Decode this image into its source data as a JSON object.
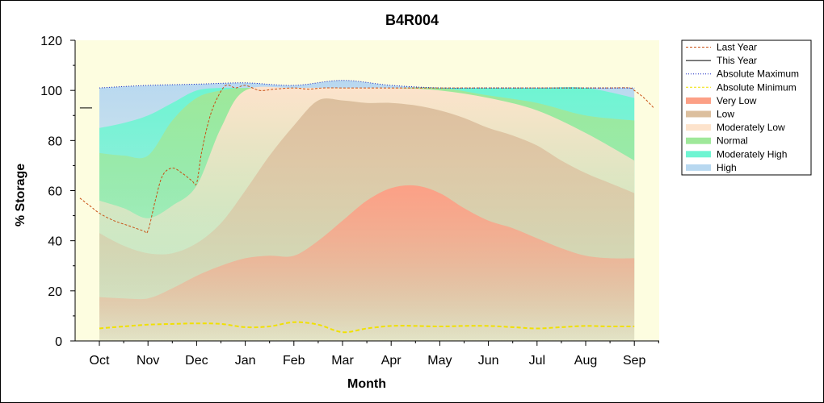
{
  "chart_data": {
    "type": "area",
    "title": "B4R004",
    "xlabel": "Month",
    "ylabel": "% Storage",
    "ylim": [
      0,
      120
    ],
    "yticks": [
      0,
      20,
      40,
      60,
      80,
      100,
      120
    ],
    "categories": [
      "Oct",
      "Nov",
      "Dec",
      "Jan",
      "Feb",
      "Mar",
      "Apr",
      "May",
      "Jun",
      "Jul",
      "Aug",
      "Sep"
    ],
    "legend_position": "right",
    "bands": [
      {
        "name": "High",
        "color": "#b8d8f0",
        "x": [
          0,
          1,
          2,
          3,
          4,
          5,
          6,
          7,
          8,
          9,
          10,
          11
        ],
        "values": [
          101,
          102,
          102.5,
          103,
          102,
          104,
          102,
          101,
          101,
          101,
          101,
          101
        ]
      },
      {
        "name": "Moderately High",
        "color": "#6ff5d2",
        "x": [
          0,
          0.5,
          1,
          1.5,
          2,
          2.5,
          3,
          4,
          5,
          6,
          7,
          8,
          9,
          10,
          11
        ],
        "values": [
          85,
          87,
          90,
          95,
          100,
          101,
          101,
          101,
          101,
          101,
          101,
          101,
          101,
          101,
          97
        ]
      },
      {
        "name": "Normal",
        "color": "#9fe89a",
        "x": [
          0,
          0.5,
          1,
          1.5,
          2,
          2.5,
          3,
          4,
          5,
          6,
          7,
          8,
          9,
          10,
          11
        ],
        "values": [
          75,
          74,
          74,
          88,
          97,
          100,
          101,
          101,
          101,
          101,
          101,
          98,
          95,
          90,
          88
        ]
      },
      {
        "name": "Moderately Low",
        "color": "#fde3cc",
        "x": [
          0,
          0.5,
          1,
          1.5,
          2,
          2.5,
          3,
          4,
          5,
          6,
          7,
          8,
          9,
          10,
          11
        ],
        "values": [
          56,
          53,
          49,
          54,
          62,
          85,
          100,
          101,
          101,
          101,
          100,
          97,
          92,
          83,
          72
        ]
      },
      {
        "name": "Low",
        "color": "#dcbf9e",
        "x": [
          0,
          0.5,
          1,
          1.5,
          2,
          2.5,
          3,
          3.5,
          4,
          4.5,
          5,
          5.5,
          6,
          6.5,
          7,
          7.5,
          8,
          8.5,
          9,
          9.5,
          10,
          10.5,
          11
        ],
        "values": [
          43,
          38,
          35,
          35,
          39,
          47,
          60,
          74,
          86,
          96,
          96,
          95,
          95,
          94,
          92,
          89,
          85,
          82,
          78,
          72,
          67,
          63,
          59
        ]
      },
      {
        "name": "Very Low",
        "color": "#fca086",
        "x": [
          0,
          0.5,
          1,
          1.5,
          2,
          2.5,
          3,
          3.5,
          4,
          4.5,
          5,
          5.5,
          6,
          6.5,
          7,
          7.5,
          8,
          8.5,
          9,
          9.5,
          10,
          10.5,
          11
        ],
        "values": [
          17.5,
          17,
          17,
          21,
          26,
          30,
          33,
          34,
          34,
          40,
          48,
          56,
          61,
          62,
          59,
          53,
          48,
          45,
          41,
          37,
          34,
          33,
          33
        ]
      }
    ],
    "series": [
      {
        "name": "Last Year",
        "style": "dashed",
        "color": "#c85014",
        "x": [
          -0.4,
          -0.2,
          0,
          0.3,
          0.6,
          0.9,
          1,
          1.15,
          1.3,
          1.5,
          1.7,
          1.9,
          2,
          2.1,
          2.25,
          2.4,
          2.6,
          2.8,
          3,
          3.3,
          3.6,
          4,
          4.3,
          4.6,
          5,
          5.5,
          6,
          6.5,
          7,
          7.5,
          8,
          8.5,
          9,
          9.5,
          10,
          10.5,
          10.9,
          11,
          11.2,
          11.4
        ],
        "values": [
          57,
          54,
          51,
          48,
          46,
          44,
          44,
          56,
          66,
          69,
          67,
          64,
          63,
          75,
          88,
          96,
          102,
          101,
          102,
          100,
          100.5,
          101,
          100.5,
          101,
          101,
          101,
          101,
          101,
          101,
          101,
          101,
          101,
          101,
          101,
          101,
          101,
          101,
          100,
          97,
          93
        ]
      },
      {
        "name": "This Year",
        "style": "solid",
        "color": "#000000",
        "x": [
          -0.4,
          -0.15
        ],
        "values": [
          93,
          93
        ]
      },
      {
        "name": "Absolute Maximum",
        "style": "dotted",
        "color": "#1020c0",
        "x": [
          0,
          1,
          2,
          3,
          4,
          5,
          6,
          7,
          8,
          9,
          10,
          11
        ],
        "values": [
          101,
          102,
          102.5,
          103,
          102,
          104,
          102,
          101,
          101,
          101,
          101,
          101
        ]
      },
      {
        "name": "Absolute Minimum",
        "style": "dashed",
        "color": "#f0e000",
        "x": [
          0,
          0.5,
          1,
          1.5,
          2,
          2.5,
          3,
          3.5,
          4,
          4.5,
          5,
          5.5,
          6,
          6.5,
          7,
          7.5,
          8,
          8.5,
          9,
          9.5,
          10,
          10.5,
          11
        ],
        "values": [
          5,
          5.8,
          6.5,
          6.8,
          7,
          6.8,
          5.5,
          5.8,
          7.5,
          6.5,
          3.5,
          5,
          6,
          6,
          5.8,
          6,
          6,
          5.5,
          5,
          5.5,
          6,
          5.8,
          5.8
        ]
      }
    ],
    "legend": [
      {
        "name": "Last Year",
        "kind": "line",
        "style": "dashed",
        "color": "#c85014"
      },
      {
        "name": "This Year",
        "kind": "line",
        "style": "solid",
        "color": "#000000"
      },
      {
        "name": "Absolute Maximum",
        "kind": "line",
        "style": "dotted",
        "color": "#1020c0"
      },
      {
        "name": "Absolute Minimum",
        "kind": "line",
        "style": "dashed",
        "color": "#f0e000"
      },
      {
        "name": "Very Low",
        "kind": "area",
        "color": "#fca086"
      },
      {
        "name": "Low",
        "kind": "area",
        "color": "#dcbf9e"
      },
      {
        "name": "Moderately Low",
        "kind": "area",
        "color": "#fde3cc"
      },
      {
        "name": "Normal",
        "kind": "area",
        "color": "#9fe89a"
      },
      {
        "name": "Moderately High",
        "kind": "area",
        "color": "#6ff5d2"
      },
      {
        "name": "High",
        "kind": "area",
        "color": "#b8d8f0"
      }
    ],
    "plot_background": "#fdfde0"
  }
}
